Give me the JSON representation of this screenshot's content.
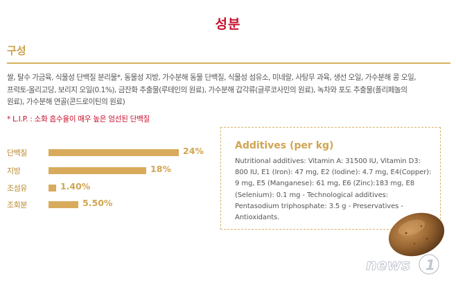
{
  "page": {
    "title": "성분"
  },
  "composition": {
    "section_title": "구성",
    "ingredients_lines": [
      "쌀, 탈수 가금육, 식물성 단백질 분리물*, 동물성 지방, 가수분해 동물 단백질, 식물성 섬유소, 미네랄, 사탕무 과육, 생선 오일, 가수분해 콩 오일,",
      "프럭토-올리고당, 보리지 오일(0.1%), 금잔화 추출물(루테인의 원료), 가수분해 갑각류(글루코사민의 원료), 녹차와 포도 추출물(폴리페놀의",
      "원료), 가수분해 연골(콘드로이틴의 원료)"
    ],
    "lip_note": "* L.I.P. : 소화 흡수율이 매우 높은 엄선된 단백질"
  },
  "nutrients": [
    {
      "label": "단백질",
      "value_text": "24%",
      "value": 24
    },
    {
      "label": "지방",
      "value_text": "18%",
      "value": 18
    },
    {
      "label": "조섬유",
      "value_text": "1.40%",
      "value": 1.4
    },
    {
      "label": "조회분",
      "value_text": "5.50%",
      "value": 5.5
    }
  ],
  "additives": {
    "title": "Additives (per kg)",
    "lines": [
      "Nutritional additives: Vitamin A: 31500 IU, Vitamin D3:",
      "800 IU, E1 (Iron): 47 mg, E2 (Iodine): 4.7 mg, E4(Copper):",
      "9 mg, E5 (Manganese): 61 mg, E6 (Zinc):183 mg, E8",
      "(Selenium): 0.1 mg - Technological additives:",
      "Pentasodium triphosphate: 3.5 g - Preservatives -",
      "Antioxidants."
    ]
  },
  "watermark": {
    "text": "news1"
  },
  "colors": {
    "red": "#c8102e",
    "gold": "#d0a552",
    "bar": "#d8ab5c"
  }
}
